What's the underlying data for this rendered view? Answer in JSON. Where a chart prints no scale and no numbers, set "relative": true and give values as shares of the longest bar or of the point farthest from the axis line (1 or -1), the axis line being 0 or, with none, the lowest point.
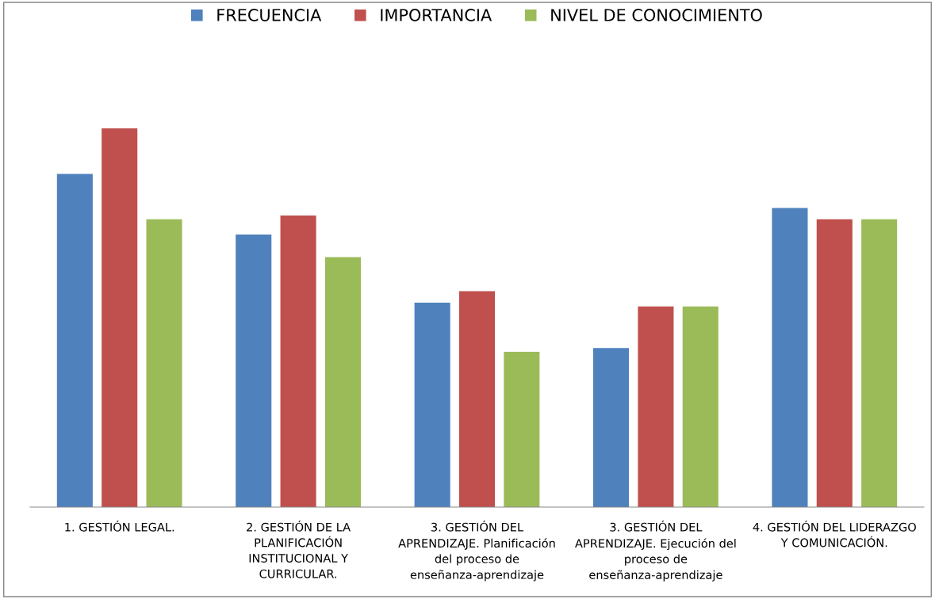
{
  "chart_data": {
    "type": "bar",
    "relative": true,
    "legend": "top",
    "grid": false,
    "categories": [
      "1. GESTIÓN LEGAL.",
      "2. GESTIÓN DE LA PLANIFICACIÓN INSTITUCIONAL Y CURRICULAR.",
      "3. GESTIÓN DEL APRENDIZAJE. Planificación del proceso de enseñanza-aprendizaje",
      "3. GESTIÓN DEL APRENDIZAJE. Ejecución del proceso de enseñanza-aprendizaje",
      "4. GESTIÓN DEL LIDERAZGO Y COMUNICACIÓN."
    ],
    "series": [
      {
        "name": "FRECUENCIA",
        "color": "#4f81bd",
        "values": [
          0.88,
          0.72,
          0.54,
          0.42,
          0.79
        ]
      },
      {
        "name": "IMPORTANCIA",
        "color": "#c0504d",
        "values": [
          1,
          0.77,
          0.57,
          0.53,
          0.76
        ]
      },
      {
        "name": "NIVEL DE CONOCIMIENTO",
        "color": "#9bbb59",
        "values": [
          0.76,
          0.66,
          0.41,
          0.53,
          0.76
        ]
      }
    ]
  }
}
